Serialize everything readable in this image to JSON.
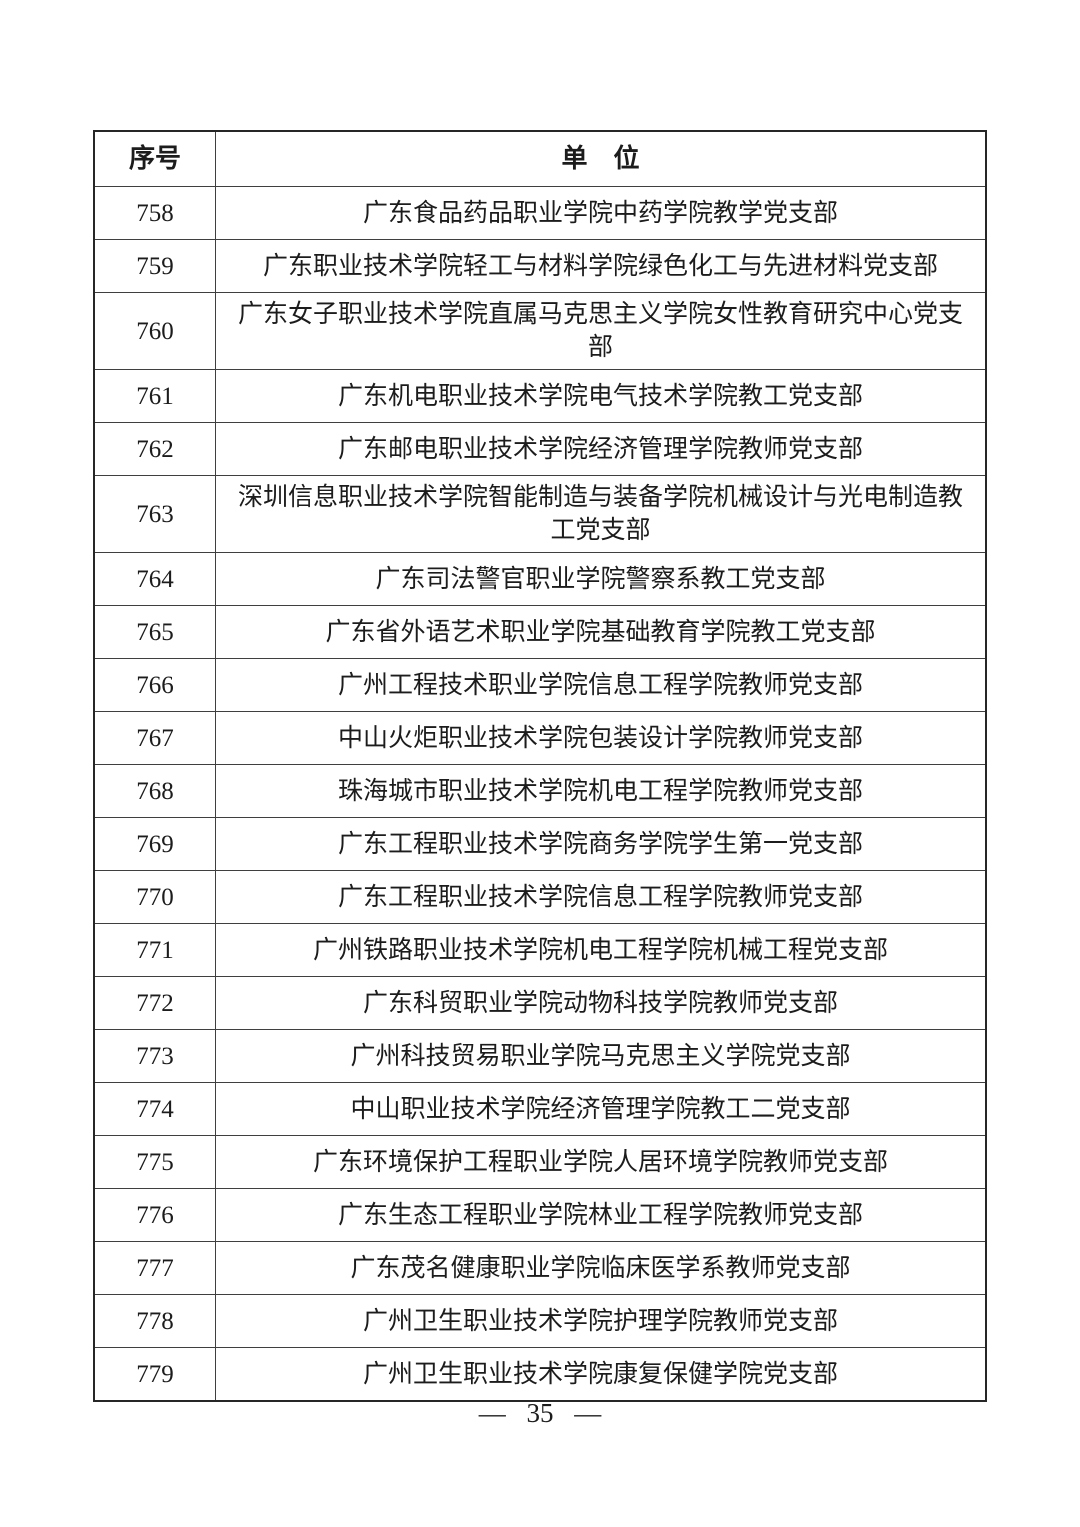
{
  "page": {
    "number_label": "— 35 —"
  },
  "table": {
    "col_headers": {
      "no": "序号",
      "unit": "单　位"
    },
    "rows": [
      {
        "no": "758",
        "unit": "广东食品药品职业学院中药学院教学党支部"
      },
      {
        "no": "759",
        "unit": "广东职业技术学院轻工与材料学院绿色化工与先进材料党支部"
      },
      {
        "no": "760",
        "unit": "广东女子职业技术学院直属马克思主义学院女性教育研究中心党支部"
      },
      {
        "no": "761",
        "unit": "广东机电职业技术学院电气技术学院教工党支部"
      },
      {
        "no": "762",
        "unit": "广东邮电职业技术学院经济管理学院教师党支部"
      },
      {
        "no": "763",
        "unit": "深圳信息职业技术学院智能制造与装备学院机械设计与光电制造教工党支部"
      },
      {
        "no": "764",
        "unit": "广东司法警官职业学院警察系教工党支部"
      },
      {
        "no": "765",
        "unit": "广东省外语艺术职业学院基础教育学院教工党支部"
      },
      {
        "no": "766",
        "unit": "广州工程技术职业学院信息工程学院教师党支部"
      },
      {
        "no": "767",
        "unit": "中山火炬职业技术学院包装设计学院教师党支部"
      },
      {
        "no": "768",
        "unit": "珠海城市职业技术学院机电工程学院教师党支部"
      },
      {
        "no": "769",
        "unit": "广东工程职业技术学院商务学院学生第一党支部"
      },
      {
        "no": "770",
        "unit": "广东工程职业技术学院信息工程学院教师党支部"
      },
      {
        "no": "771",
        "unit": "广州铁路职业技术学院机电工程学院机械工程党支部"
      },
      {
        "no": "772",
        "unit": "广东科贸职业学院动物科技学院教师党支部"
      },
      {
        "no": "773",
        "unit": "广州科技贸易职业学院马克思主义学院党支部"
      },
      {
        "no": "774",
        "unit": "中山职业技术学院经济管理学院教工二党支部"
      },
      {
        "no": "775",
        "unit": "广东环境保护工程职业学院人居环境学院教师党支部"
      },
      {
        "no": "776",
        "unit": "广东生态工程职业学院林业工程学院教师党支部"
      },
      {
        "no": "777",
        "unit": "广东茂名健康职业学院临床医学系教师党支部"
      },
      {
        "no": "778",
        "unit": "广州卫生职业技术学院护理学院教师党支部"
      },
      {
        "no": "779",
        "unit": "广州卫生职业技术学院康复保健学院党支部"
      }
    ]
  }
}
